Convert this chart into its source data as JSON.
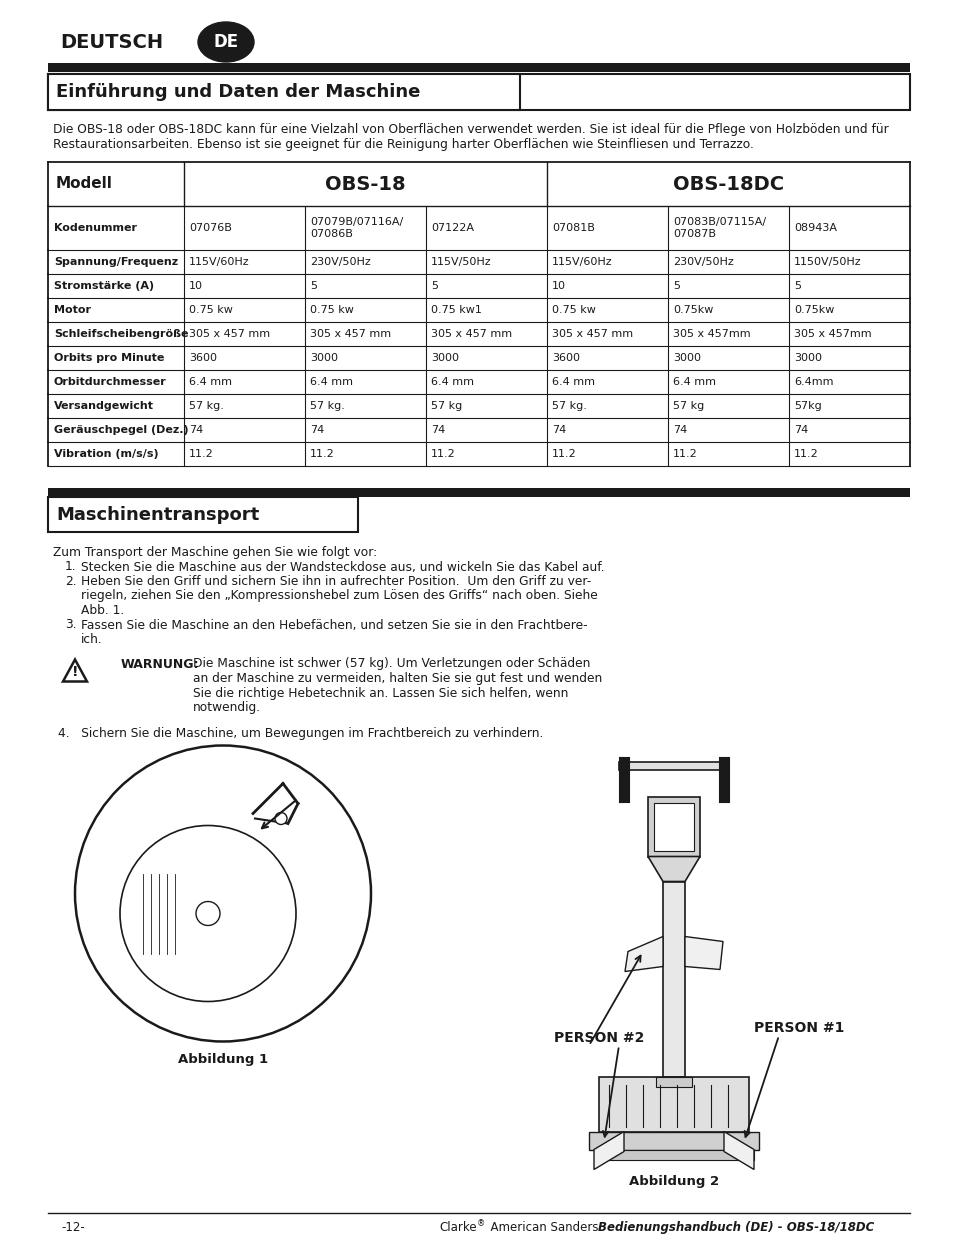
{
  "page_bg": "#ffffff",
  "top_title": "DEUTSCH",
  "top_badge": "DE",
  "section1_title": "Einführung und Daten der Maschine",
  "section1_text_l1": "Die OBS-18 oder OBS-18DC kann für eine Vielzahl von Oberflächen verwendet werden. Sie ist ideal für die Pflege von Holzböden und für",
  "section1_text_l2": "Restaurationsarbeiten. Ebenso ist sie geeignet für die Reinigung harter Oberflächen wie Steinfliesen und Terrazzo.",
  "table_rows": [
    [
      "Kodenummer",
      "07076B",
      "07079B/07116A/\n07086B",
      "07122A",
      "07081B",
      "07083B/07115A/\n07087B",
      "08943A"
    ],
    [
      "Spannung/Frequenz",
      "115V/60Hz",
      "230V/50Hz",
      "115V/50Hz",
      "115V/60Hz",
      "230V/50Hz",
      "1150V/50Hz"
    ],
    [
      "Stromstärke (A)",
      "10",
      "5",
      "5",
      "10",
      "5",
      "5"
    ],
    [
      "Motor",
      "0.75 kw",
      "0.75 kw",
      "0.75 kw1",
      "0.75 kw",
      "0.75kw",
      "0.75kw"
    ],
    [
      "Schleifscheibengröße",
      "305 x 457 mm",
      "305 x 457 mm",
      "305 x 457 mm",
      "305 x 457 mm",
      "305 x 457mm",
      "305 x 457mm"
    ],
    [
      "Orbits pro Minute",
      "3600",
      "3000",
      "3000",
      "3600",
      "3000",
      "3000"
    ],
    [
      "Orbitdurchmesser",
      "6.4 mm",
      "6.4 mm",
      "6.4 mm",
      "6.4 mm",
      "6.4 mm",
      "6.4mm"
    ],
    [
      "Versandgewicht",
      "57 kg.",
      "57 kg.",
      "57 kg",
      "57 kg.",
      "57 kg",
      "57kg"
    ],
    [
      "Geräuschpegel (Dez.)",
      "74",
      "74",
      "74",
      "74",
      "74",
      "74"
    ],
    [
      "Vibration (m/s/s)",
      "11.2",
      "11.2",
      "11.2",
      "11.2",
      "11.2",
      "11.2"
    ]
  ],
  "section2_title": "Maschinentransport",
  "section2_intro": "Zum Transport der Maschine gehen Sie wie folgt vor:",
  "step1": "Stecken Sie die Maschine aus der Wandsteckdose aus, und wickeln Sie das Kabel auf.",
  "step2a": "Heben Sie den Griff und sichern Sie ihn in aufrechter Position.  Um den Griff zu ver-",
  "step2b": "riegeln, ziehen Sie den „Kompressionshebel zum Lösen des Griffs“ nach oben. Siehe",
  "step2c": "Abb. 1.",
  "step3a": "Fassen Sie die Maschine an den Hebefächen, und setzen Sie sie in den Frachtbere-",
  "step3b": "ich.",
  "warning_label": "WARNUNG:",
  "warning_text_l1": "Die Maschine ist schwer (57 kg). Um Verletzungen oder Schäden",
  "warning_text_l2": "an der Maschine zu vermeiden, halten Sie sie gut fest und wenden",
  "warning_text_l3": "Sie die richtige Hebetechnik an. Lassen Sie sich helfen, wenn",
  "warning_text_l4": "notwendig.",
  "step4": "4.   Sichern Sie die Maschine, um Bewegungen im Frachtbereich zu verhindern.",
  "fig1_caption": "Abbildung 1",
  "fig2_caption": "Abbildung 2",
  "person1_label": "PERSON #1",
  "person2_label": "PERSON #2",
  "footer_left": "-12-",
  "footer_center_normal": "Clarke",
  "footer_center_reg": "®",
  "footer_center_rest": "  American Sanders   ",
  "footer_center_bold": "Bedienungshandbuch (DE) - OBS-18/18DC",
  "dark": "#1a1a1a"
}
